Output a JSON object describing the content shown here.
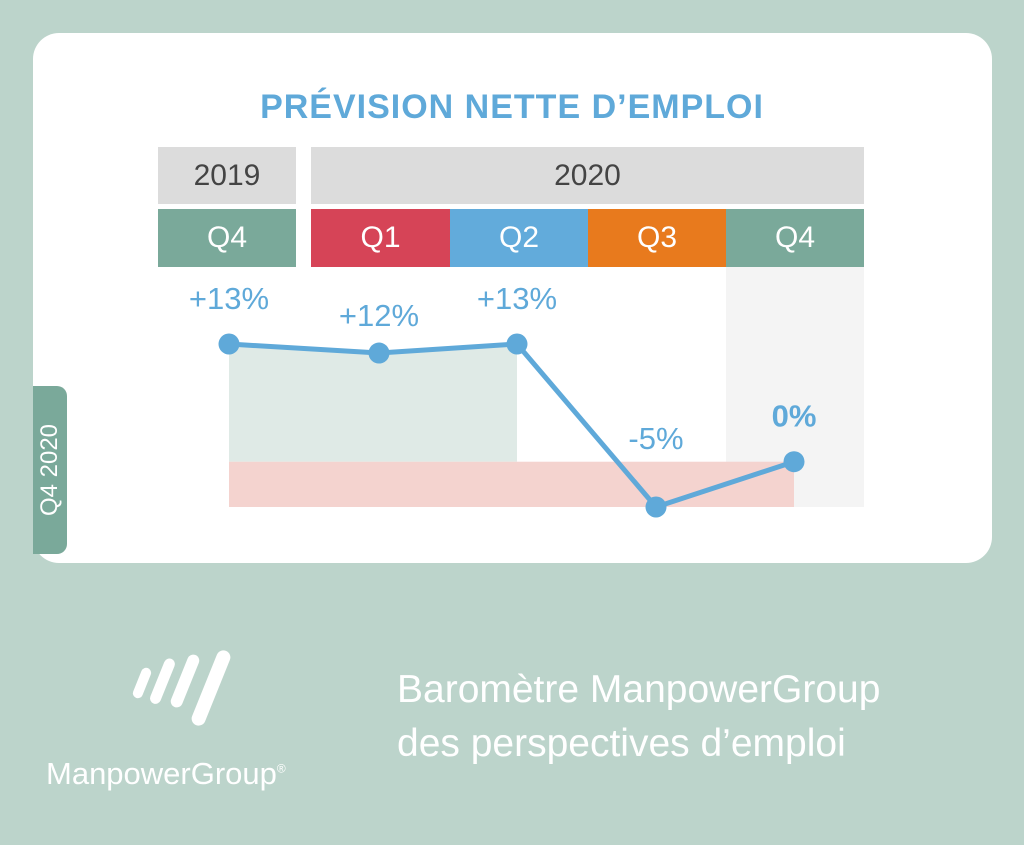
{
  "colors": {
    "background": "#bcd4cb",
    "title": "#5fa9d9",
    "q4": "#7aa99a",
    "q1": "#d64457",
    "q2": "#62abdb",
    "q3": "#e87a1d",
    "line": "#5fa9d9",
    "positive_fill": "#dfeae6",
    "negative_fill": "#f4d3cf"
  },
  "side_tab": "Q4 2020",
  "chart_data": {
    "type": "line",
    "title": "PRÉVISION NETTE D’EMPLOI",
    "years": [
      {
        "label": "2019",
        "span": [
          "Q4"
        ]
      },
      {
        "label": "2020",
        "span": [
          "Q1",
          "Q2",
          "Q3",
          "Q4"
        ]
      }
    ],
    "categories": [
      "Q4",
      "Q1",
      "Q2",
      "Q3",
      "Q4"
    ],
    "values": [
      13,
      12,
      13,
      -5,
      0
    ],
    "data_labels": [
      "+13%",
      "+12%",
      "+13%",
      "-5%",
      "0%"
    ],
    "ylim": [
      -5,
      13
    ],
    "highlighted_category_index": 4,
    "grid": false
  },
  "footer": {
    "brand": "ManpowerGroup",
    "brand_reg": "®",
    "line1": "Baromètre ManpowerGroup",
    "line2": "des perspectives d’emploi"
  }
}
